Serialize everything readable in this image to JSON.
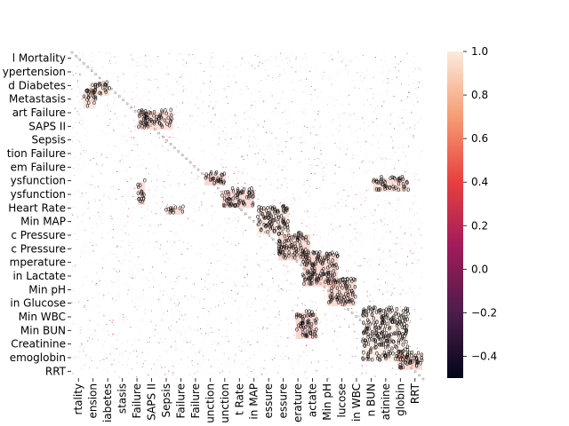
{
  "chart_data": {
    "type": "heatmap",
    "title": "",
    "xlabel": "",
    "ylabel": "",
    "colormap": "rocket",
    "colors": [
      "#03051a",
      "#4c1d4b",
      "#a11a5b",
      "#e83f3f",
      "#f69c73",
      "#faebdd"
    ],
    "colorbar": {
      "min": -0.5,
      "max": 1.0,
      "ticks": [
        1.0,
        0.8,
        0.6,
        0.4,
        0.2,
        0.0,
        -0.2,
        -0.4
      ],
      "tick_labels": [
        "1.0",
        "0.8",
        "0.6",
        "0.4",
        "0.2",
        "0.0",
        "−0.2",
        "−0.4"
      ]
    },
    "y_tick_labels": [
      "l Mortality",
      "ypertension",
      "d Diabetes",
      "Metastasis",
      "art Failure",
      "SAPS II",
      "Sepsis",
      "tion Failure",
      "em Failure",
      "ysfunction",
      "ysfunction",
      "Heart Rate",
      "Min MAP",
      "c Pressure",
      "c Pressure",
      "mperature",
      "in Lactate",
      "Min pH",
      "in Glucose",
      "Min WBC",
      "Min BUN",
      "Creatinine",
      "emoglobin",
      "RRT"
    ],
    "x_tick_labels": [
      "rtality",
      "ension",
      "iabetes",
      "stasis",
      "Failure",
      "SAPS II",
      "Sepsis",
      "Failure",
      "Failure",
      "unction",
      "unction",
      "t Rate",
      "in MAP",
      "essure",
      "essure",
      "erature",
      "actate",
      "Min pH",
      "lucose",
      "in WBC",
      "n BUN",
      "atinine",
      "globin",
      "RRT"
    ],
    "blocks": [
      {
        "r0": 0.125,
        "r1": 0.175,
        "c0": 0.035,
        "c1": 0.07,
        "value": 0.7
      },
      {
        "r0": 0.1,
        "r1": 0.135,
        "c0": 0.05,
        "c1": 0.11,
        "value": 0.7
      },
      {
        "r0": 0.375,
        "r1": 0.41,
        "c0": 0.38,
        "c1": 0.44,
        "value": 0.5
      },
      {
        "r0": 0.185,
        "r1": 0.24,
        "c0": 0.19,
        "c1": 0.29,
        "value": 0.6
      },
      {
        "r0": 0.4,
        "r1": 0.47,
        "c0": 0.19,
        "c1": 0.21,
        "value": 0.6
      },
      {
        "r0": 0.48,
        "r1": 0.5,
        "c0": 0.27,
        "c1": 0.32,
        "value": 0.6
      },
      {
        "r0": 0.39,
        "r1": 0.43,
        "c0": 0.86,
        "c1": 0.96,
        "value": 0.6
      },
      {
        "r0": 0.425,
        "r1": 0.48,
        "c0": 0.43,
        "c1": 0.52,
        "value": 0.55
      },
      {
        "r0": 0.48,
        "r1": 0.56,
        "c0": 0.53,
        "c1": 0.62,
        "value": 0.75
      },
      {
        "r0": 0.56,
        "r1": 0.64,
        "c0": 0.59,
        "c1": 0.68,
        "value": 0.55
      },
      {
        "r0": 0.62,
        "r1": 0.72,
        "c0": 0.66,
        "c1": 0.76,
        "value": 0.55
      },
      {
        "r0": 0.7,
        "r1": 0.78,
        "c0": 0.73,
        "c1": 0.81,
        "value": 0.55
      },
      {
        "r0": 0.8,
        "r1": 0.88,
        "c0": 0.64,
        "c1": 0.7,
        "value": 0.5
      },
      {
        "r0": 0.79,
        "r1": 0.95,
        "c0": 0.83,
        "c1": 0.96,
        "value": 0.85
      },
      {
        "r0": 0.925,
        "r1": 0.975,
        "c0": 0.93,
        "c1": 1.0,
        "value": 0.55
      }
    ]
  }
}
